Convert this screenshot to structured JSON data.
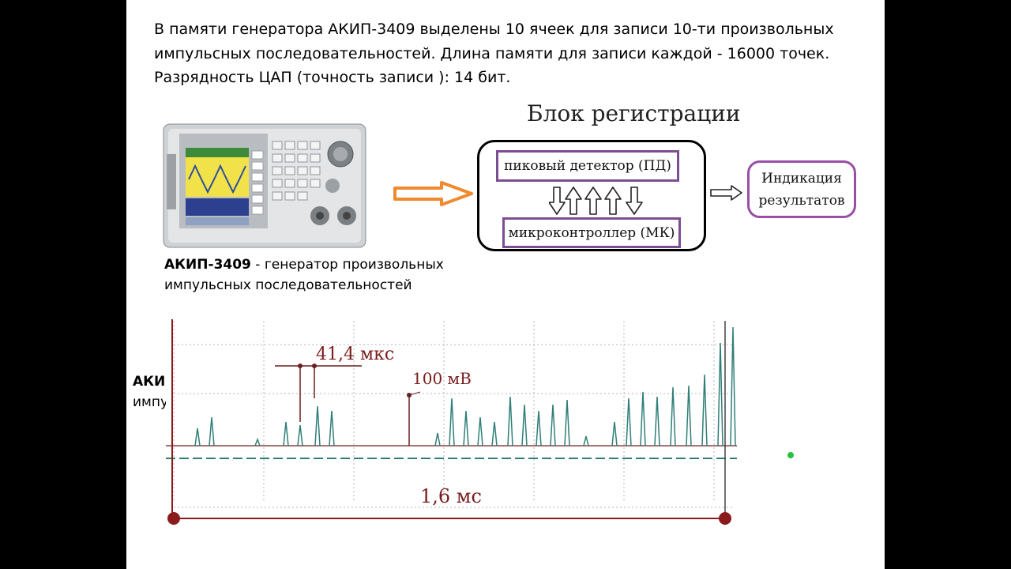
{
  "intro": {
    "line1": "В памяти генератора АКИП-3409 выделены 10 ячеек для записи 10-ти произвольных",
    "line2": "импульсных последовательностей. Длина памяти для записи каждой -  16000 точек.",
    "line3": "Разрядность ЦАП (точность записи ): 14 бит."
  },
  "diagram": {
    "title": "Блок регистрации",
    "peak_detector": "пиковый детектор (ПД)",
    "microcontroller": "микроконтроллер (МК)",
    "indication_line1": "Индикация",
    "indication_line2": "результатов"
  },
  "caption": {
    "device_name": "АКИП-3409",
    "text_line1": " - генератор произвольных",
    "text_line2": "импульсных последовательностей"
  },
  "stray": {
    "bold_fragment": "АКИ",
    "fragment": "импу"
  },
  "oscillogram": {
    "interval_label": "41,4 мкс",
    "amplitude_label": "100 мВ",
    "duration_label": "1,6 мс"
  },
  "colors": {
    "arrow_orange": "#f08a2e",
    "box_purple": "#7b4d92",
    "trace_teal": "#2f7f78",
    "marker_red": "#8b1a1a"
  }
}
